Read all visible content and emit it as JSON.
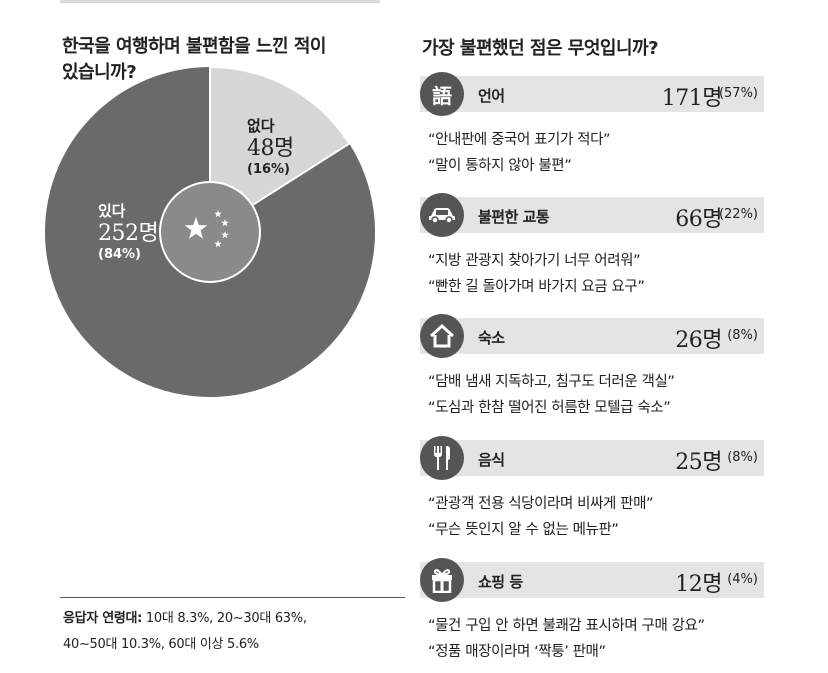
{
  "left": {
    "title_line1": "한국을 여행하며 불편함을 느낀 적이",
    "title_line2": "있습니까?"
  },
  "chart_data": [
    {
      "type": "pie",
      "categories": [
        "있다",
        "없다"
      ],
      "values": [
        252,
        48
      ],
      "percent_labels": [
        "(84%)",
        "(16%)"
      ],
      "count_labels": [
        "252명",
        "48명"
      ],
      "colors": [
        "#6a6a6a",
        "#d6d6d6"
      ]
    },
    {
      "type": "bar",
      "categories": [
        "언어",
        "불편한 교통",
        "숙소",
        "음식",
        "쇼핑 등"
      ],
      "values": [
        171,
        66,
        26,
        25,
        12
      ]
    }
  ],
  "footnote": {
    "label": "응답자 연령대:",
    "line1": " 10대 8.3%, 20~30대 63%,",
    "line2": "40~50대 10.3%, 60대 이상 5.6%"
  },
  "right": {
    "title": "가장 불편했던 점은 무엇입니까?",
    "categories": [
      {
        "icon": "language-icon",
        "icon_text": "語",
        "name": "언어",
        "count": "171명",
        "pct": "(57%)",
        "quotes": [
          "“안내판에 중국어 표기가 적다”",
          "“말이 통하지 않아 불편”"
        ]
      },
      {
        "icon": "car-icon",
        "icon_text": "",
        "name": "불편한 교통",
        "count": "66명",
        "pct": "(22%)",
        "quotes": [
          "“지방 관광지 찾아가기 너무 어려워”",
          "“빤한 길 돌아가며 바가지 요금 요구”"
        ]
      },
      {
        "icon": "house-icon",
        "icon_text": "",
        "name": "숙소",
        "count": "26명",
        "pct": "(8%)",
        "quotes": [
          "“담배 냄새 지독하고, 침구도 더러운 객실”",
          "“도심과 한참 떨어진 허름한 모텔급 숙소”"
        ]
      },
      {
        "icon": "fork-knife-icon",
        "icon_text": "",
        "name": "음식",
        "count": "25명",
        "pct": "(8%)",
        "quotes": [
          "“관광객 전용 식당이라며 비싸게 판매”",
          "“무슨 뜻인지 알 수 없는 메뉴판”"
        ]
      },
      {
        "icon": "gift-icon",
        "icon_text": "",
        "name": "쇼핑 등",
        "count": "12명",
        "pct": "(4%)",
        "quotes": [
          "“물건 구입 안 하면 불쾌감 표시하며 구매 강요”",
          "“정품 매장이라며 ‘짝퉁’ 판매”"
        ]
      }
    ]
  }
}
